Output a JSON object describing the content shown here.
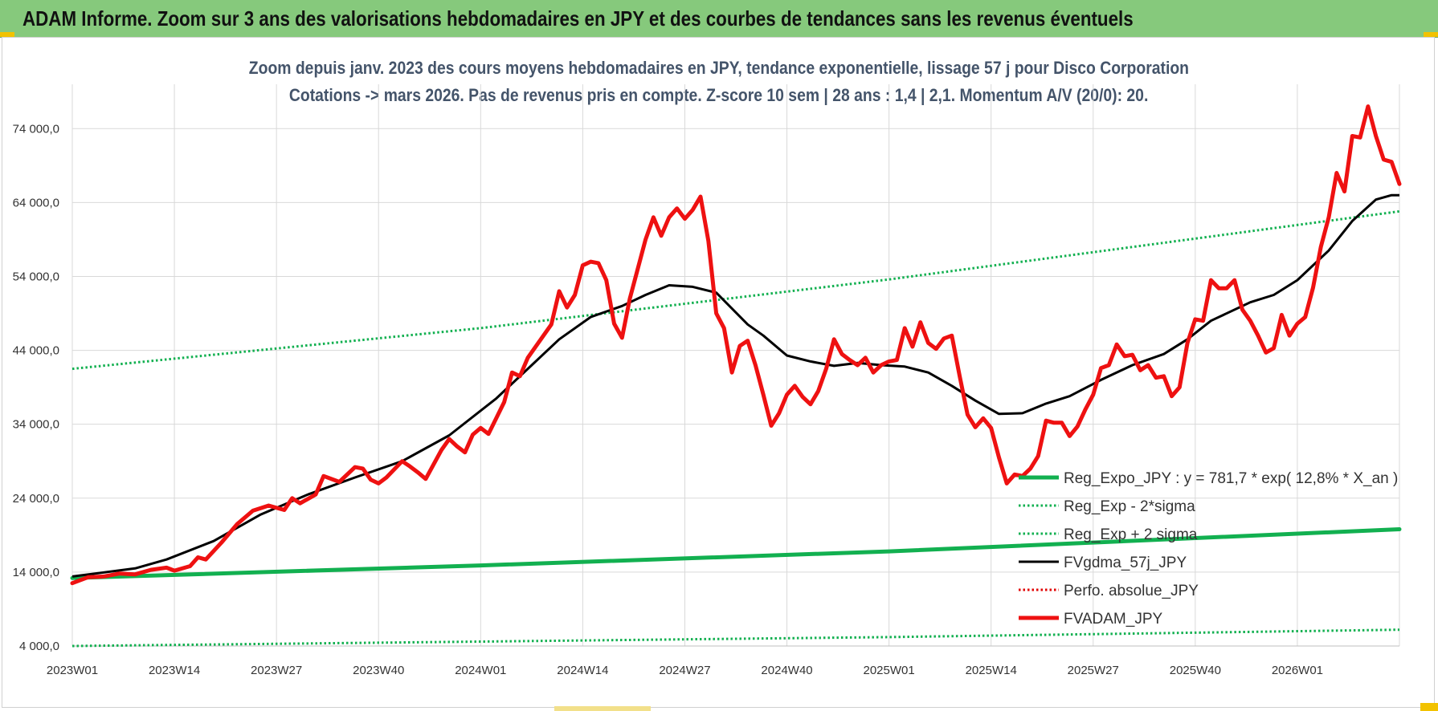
{
  "banner": {
    "title": "ADAM Informe. Zoom sur 3 ans des valorisations hebdomadaires en JPY et des courbes de tendances sans les revenus éventuels"
  },
  "colors": {
    "banner": "#86c97c",
    "accent": "#f2c200",
    "reg_expo": "#12b050",
    "sigma": "#12b050",
    "fvgdma": "#000000",
    "perfo": "#e00000",
    "fvadam": "#ee1111",
    "grid": "#d9d9d9"
  },
  "chart_data": {
    "type": "line",
    "title": "Zoom depuis janv. 2023 des cours moyens hebdomadaires en JPY, tendance exponentielle, lissage 57 j pour Disco Corporation",
    "subtitle": "Cotations -> mars 2026. Pas de revenus pris en compte. Z-score 10 sem | 28 ans : 1,4 | 2,1. Momentum A/V (20/0): 20.",
    "ylim": [
      4000,
      80000
    ],
    "yticks": [
      4000,
      14000,
      24000,
      34000,
      44000,
      54000,
      64000,
      74000
    ],
    "ytick_labels": [
      "4 000,0",
      "14 000,0",
      "24 000,0",
      "34 000,0",
      "44 000,0",
      "54 000,0",
      "64 000,0",
      "74 000,0"
    ],
    "x_count": 170,
    "xtick_labels": [
      "2023W01",
      "2023W14",
      "2023W27",
      "2023W40",
      "2024W01",
      "2024W14",
      "2024W27",
      "2024W40",
      "2025W01",
      "2025W14",
      "2025W27",
      "2025W40",
      "2026W01"
    ],
    "xtick_index": [
      0,
      13,
      26,
      39,
      52,
      65,
      78,
      91,
      104,
      117,
      130,
      143,
      156
    ],
    "legend_position": "right",
    "series": [
      {
        "name": "Reg_Expo_JPY : y = 781,7 * exp( 12,8% *  X_an )",
        "style": "solid-thick",
        "color": "#12b050",
        "keypoints": [
          [
            0,
            13200
          ],
          [
            52,
            14900
          ],
          [
            104,
            16800
          ],
          [
            169,
            19800
          ]
        ]
      },
      {
        "name": "Reg_Exp - 2*sigma",
        "style": "dotted",
        "color": "#12b050",
        "keypoints": [
          [
            0,
            4000
          ],
          [
            52,
            4600
          ],
          [
            104,
            5200
          ],
          [
            169,
            6200
          ]
        ]
      },
      {
        "name": "Reg_Exp + 2 sigma",
        "style": "dotted",
        "color": "#12b050",
        "keypoints": [
          [
            0,
            41500
          ],
          [
            52,
            47000
          ],
          [
            104,
            53600
          ],
          [
            169,
            62800
          ]
        ]
      },
      {
        "name": "FVgdma_57j_JPY",
        "style": "solid",
        "color": "#000000",
        "keypoints": [
          [
            0,
            13400
          ],
          [
            8,
            14500
          ],
          [
            12,
            15700
          ],
          [
            18,
            18200
          ],
          [
            24,
            21800
          ],
          [
            30,
            24500
          ],
          [
            36,
            26800
          ],
          [
            42,
            29000
          ],
          [
            48,
            32500
          ],
          [
            54,
            37500
          ],
          [
            58,
            41500
          ],
          [
            62,
            45500
          ],
          [
            66,
            48500
          ],
          [
            70,
            50000
          ],
          [
            73,
            51500
          ],
          [
            76,
            52800
          ],
          [
            79,
            52600
          ],
          [
            82,
            51800
          ],
          [
            86,
            47500
          ],
          [
            88,
            46000
          ],
          [
            91,
            43300
          ],
          [
            94,
            42500
          ],
          [
            97,
            41900
          ],
          [
            100,
            42300
          ],
          [
            103,
            42000
          ],
          [
            106,
            41800
          ],
          [
            109,
            41000
          ],
          [
            112,
            39200
          ],
          [
            115,
            37200
          ],
          [
            118,
            35400
          ],
          [
            121,
            35500
          ],
          [
            124,
            36800
          ],
          [
            127,
            37800
          ],
          [
            131,
            40000
          ],
          [
            135,
            42000
          ],
          [
            139,
            43500
          ],
          [
            142,
            45500
          ],
          [
            145,
            48000
          ],
          [
            150,
            50500
          ],
          [
            153,
            51500
          ],
          [
            156,
            53500
          ],
          [
            160,
            57500
          ],
          [
            163,
            61500
          ],
          [
            166,
            64400
          ],
          [
            168,
            65000
          ],
          [
            169,
            65000
          ]
        ]
      },
      {
        "name": "Perfo. absolue_JPY",
        "style": "dotted",
        "color": "#e00000",
        "keypoints": []
      },
      {
        "name": "FVADAM_JPY",
        "style": "solid-thick",
        "color": "#ee1111",
        "keypoints": [
          [
            0,
            12500
          ],
          [
            2,
            13300
          ],
          [
            4,
            13400
          ],
          [
            6,
            13800
          ],
          [
            8,
            13700
          ],
          [
            10,
            14300
          ],
          [
            12,
            14600
          ],
          [
            13,
            14200
          ],
          [
            15,
            14800
          ],
          [
            16,
            16000
          ],
          [
            17,
            15700
          ],
          [
            19,
            18000
          ],
          [
            21,
            20500
          ],
          [
            23,
            22300
          ],
          [
            25,
            23000
          ],
          [
            27,
            22400
          ],
          [
            28,
            24000
          ],
          [
            29,
            23300
          ],
          [
            31,
            24500
          ],
          [
            32,
            27000
          ],
          [
            34,
            26200
          ],
          [
            36,
            28200
          ],
          [
            37,
            28000
          ],
          [
            38,
            26500
          ],
          [
            39,
            26000
          ],
          [
            40,
            26800
          ],
          [
            42,
            29000
          ],
          [
            43,
            28300
          ],
          [
            44,
            27500
          ],
          [
            45,
            26600
          ],
          [
            47,
            30500
          ],
          [
            48,
            32000
          ],
          [
            49,
            31000
          ],
          [
            50,
            30200
          ],
          [
            51,
            32600
          ],
          [
            52,
            33500
          ],
          [
            53,
            32700
          ],
          [
            55,
            37000
          ],
          [
            56,
            41000
          ],
          [
            57,
            40500
          ],
          [
            58,
            43000
          ],
          [
            60,
            46000
          ],
          [
            61,
            47500
          ],
          [
            62,
            52000
          ],
          [
            63,
            49800
          ],
          [
            64,
            51500
          ],
          [
            65,
            55500
          ],
          [
            66,
            56000
          ],
          [
            67,
            55800
          ],
          [
            68,
            53500
          ],
          [
            69,
            47600
          ],
          [
            70,
            45700
          ],
          [
            71,
            51000
          ],
          [
            72,
            55000
          ],
          [
            73,
            59000
          ],
          [
            74,
            62000
          ],
          [
            75,
            59500
          ],
          [
            76,
            62000
          ],
          [
            77,
            63200
          ],
          [
            78,
            61800
          ],
          [
            79,
            63000
          ],
          [
            80,
            64800
          ],
          [
            81,
            58800
          ],
          [
            82,
            49000
          ],
          [
            83,
            47000
          ],
          [
            84,
            41000
          ],
          [
            85,
            44600
          ],
          [
            86,
            45300
          ],
          [
            87,
            42000
          ],
          [
            88,
            38000
          ],
          [
            89,
            33800
          ],
          [
            90,
            35500
          ],
          [
            91,
            38000
          ],
          [
            92,
            39200
          ],
          [
            93,
            37700
          ],
          [
            94,
            36700
          ],
          [
            95,
            38500
          ],
          [
            96,
            41500
          ],
          [
            97,
            45500
          ],
          [
            98,
            43500
          ],
          [
            99,
            42700
          ],
          [
            100,
            42000
          ],
          [
            101,
            43000
          ],
          [
            102,
            41000
          ],
          [
            103,
            42000
          ],
          [
            104,
            42500
          ],
          [
            105,
            42700
          ],
          [
            106,
            47000
          ],
          [
            107,
            44500
          ],
          [
            108,
            47800
          ],
          [
            109,
            45000
          ],
          [
            110,
            44200
          ],
          [
            111,
            45600
          ],
          [
            112,
            46000
          ],
          [
            113,
            40500
          ],
          [
            114,
            35300
          ],
          [
            115,
            33600
          ],
          [
            116,
            34800
          ],
          [
            117,
            33500
          ],
          [
            118,
            29500
          ],
          [
            119,
            26000
          ],
          [
            120,
            27200
          ],
          [
            121,
            27000
          ],
          [
            122,
            28000
          ],
          [
            123,
            29700
          ],
          [
            124,
            34500
          ],
          [
            125,
            34200
          ],
          [
            126,
            34200
          ],
          [
            127,
            32400
          ],
          [
            128,
            33700
          ],
          [
            129,
            36000
          ],
          [
            130,
            38000
          ],
          [
            131,
            41600
          ],
          [
            132,
            42000
          ],
          [
            133,
            44800
          ],
          [
            134,
            43200
          ],
          [
            135,
            43400
          ],
          [
            136,
            41300
          ],
          [
            137,
            42000
          ],
          [
            138,
            40300
          ],
          [
            139,
            40500
          ],
          [
            140,
            37800
          ],
          [
            141,
            39000
          ],
          [
            142,
            45000
          ],
          [
            143,
            48200
          ],
          [
            144,
            48000
          ],
          [
            145,
            53500
          ],
          [
            146,
            52400
          ],
          [
            147,
            52400
          ],
          [
            148,
            53500
          ],
          [
            149,
            49500
          ],
          [
            150,
            48000
          ],
          [
            151,
            46000
          ],
          [
            152,
            43700
          ],
          [
            153,
            44300
          ],
          [
            154,
            48800
          ],
          [
            155,
            46000
          ],
          [
            156,
            47600
          ],
          [
            157,
            48500
          ],
          [
            158,
            52500
          ],
          [
            159,
            58000
          ],
          [
            160,
            62000
          ],
          [
            161,
            68000
          ],
          [
            162,
            65500
          ],
          [
            163,
            73000
          ],
          [
            164,
            72800
          ],
          [
            165,
            77000
          ],
          [
            166,
            73000
          ],
          [
            167,
            69800
          ],
          [
            168,
            69500
          ],
          [
            169,
            66500
          ]
        ]
      }
    ]
  }
}
